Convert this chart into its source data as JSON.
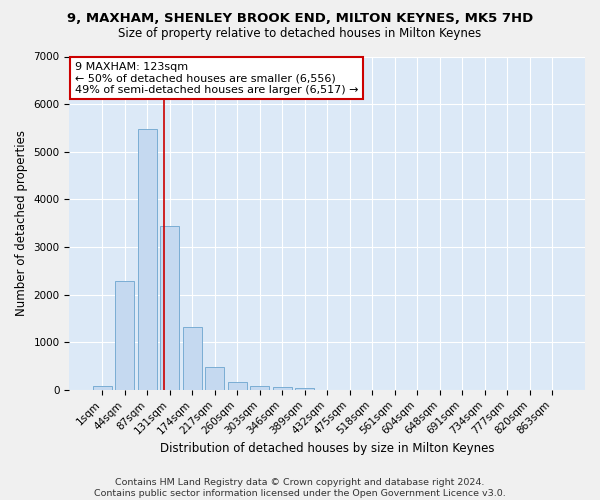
{
  "title1": "9, MAXHAM, SHENLEY BROOK END, MILTON KEYNES, MK5 7HD",
  "title2": "Size of property relative to detached houses in Milton Keynes",
  "xlabel": "Distribution of detached houses by size in Milton Keynes",
  "ylabel": "Number of detached properties",
  "bar_labels": [
    "1sqm",
    "44sqm",
    "87sqm",
    "131sqm",
    "174sqm",
    "217sqm",
    "260sqm",
    "303sqm",
    "346sqm",
    "389sqm",
    "432sqm",
    "475sqm",
    "518sqm",
    "561sqm",
    "604sqm",
    "648sqm",
    "691sqm",
    "734sqm",
    "777sqm",
    "820sqm",
    "863sqm"
  ],
  "bar_values": [
    80,
    2280,
    5480,
    3450,
    1320,
    470,
    165,
    90,
    55,
    30,
    0,
    0,
    0,
    0,
    0,
    0,
    0,
    0,
    0,
    0,
    0
  ],
  "bar_color": "#c5d9f0",
  "bar_edge_color": "#7aadd4",
  "vline_x": 2.72,
  "vline_color": "#cc0000",
  "ylim": [
    0,
    7000
  ],
  "yticks": [
    0,
    1000,
    2000,
    3000,
    4000,
    5000,
    6000,
    7000
  ],
  "annotation_line1": "9 MAXHAM: 123sqm",
  "annotation_line2": "← 50% of detached houses are smaller (6,556)",
  "annotation_line3": "49% of semi-detached houses are larger (6,517) →",
  "annotation_box_color": "#ffffff",
  "annotation_box_edge": "#cc0000",
  "footer1": "Contains HM Land Registry data © Crown copyright and database right 2024.",
  "footer2": "Contains public sector information licensed under the Open Government Licence v3.0.",
  "fig_bg_color": "#f0f0f0",
  "plot_bg_color": "#dce9f7",
  "title1_fontsize": 9.5,
  "title2_fontsize": 8.5,
  "xlabel_fontsize": 8.5,
  "ylabel_fontsize": 8.5,
  "tick_fontsize": 7.5,
  "footer_fontsize": 6.8,
  "annot_fontsize": 8
}
